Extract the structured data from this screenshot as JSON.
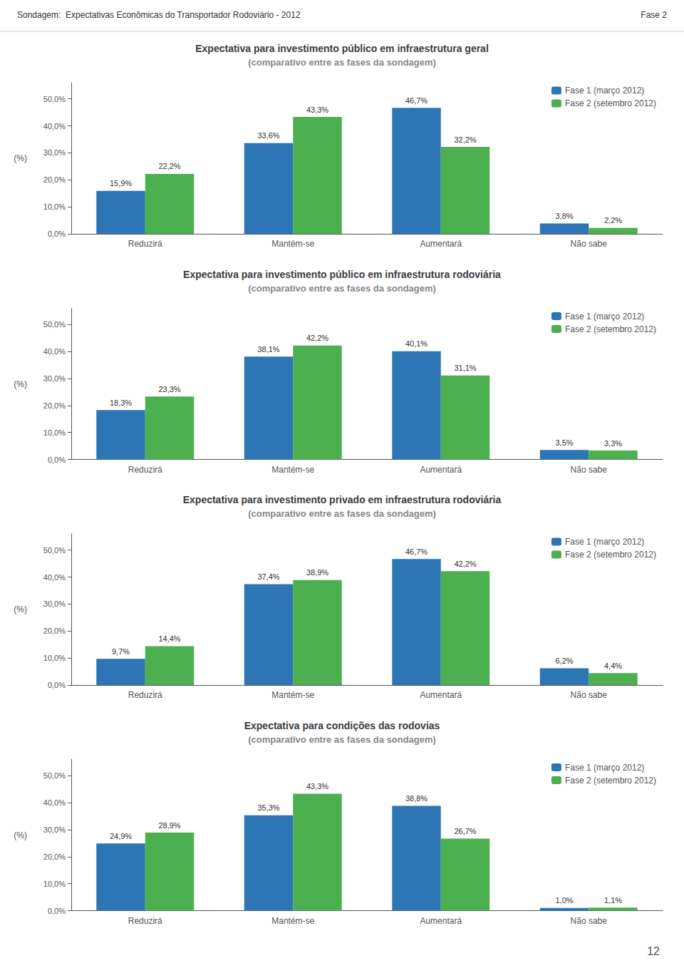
{
  "annotations": [
    "Sondagem:  Expectativas Econômicas do Transportador Rodoviário - 2012",
    "Fase 2",
    "12"
  ],
  "chart_data": [
    {
      "type": "bar",
      "title": "Expectativa para investimento público em infraestrutura geral",
      "subtitle": "(comparativo entre as fases da sondagem)",
      "y_label": "(%)",
      "categories": [
        "Reduzirá",
        "Mantém-se",
        "Aumentará",
        "Não sabe"
      ],
      "series": [
        {
          "name": "Fase 1 (março 2012)",
          "color": "#2E75B6",
          "values": [
            15.9,
            33.6,
            46.7,
            3.8
          ],
          "value_labels": [
            "15,9%",
            "33,6%",
            "46,7%",
            "3,8%"
          ]
        },
        {
          "name": "Fase 2 (setembro 2012)",
          "color": "#4CAF50",
          "values": [
            22.2,
            43.3,
            32.2,
            2.2
          ],
          "value_labels": [
            "22,2%",
            "43,3%",
            "32,2%",
            "2,2%"
          ]
        }
      ],
      "ylim": [
        0,
        56
      ],
      "yticks": [
        {
          "value": 0,
          "label": "0,0%"
        },
        {
          "value": 10,
          "label": "10,0%"
        },
        {
          "value": 20,
          "label": "20,0%"
        },
        {
          "value": 30,
          "label": "30,0%"
        },
        {
          "value": 40,
          "label": "40,0%"
        },
        {
          "value": 50,
          "label": "50,0%"
        }
      ],
      "grid": false,
      "legend": "upper right",
      "data_labels": true
    },
    {
      "type": "bar",
      "title": "Expectativa para investimento público em infraestrutura rodoviária",
      "subtitle": "(comparativo entre as fases da sondagem)",
      "y_label": "(%)",
      "categories": [
        "Reduzirá",
        "Mantém-se",
        "Aumentará",
        "Não sabe"
      ],
      "series": [
        {
          "name": "Fase 1 (março 2012)",
          "color": "#2E75B6",
          "values": [
            18.3,
            38.1,
            40.1,
            3.5
          ],
          "value_labels": [
            "18,3%",
            "38,1%",
            "40,1%",
            "3,5%"
          ]
        },
        {
          "name": "Fase 2 (setembro 2012)",
          "color": "#4CAF50",
          "values": [
            23.3,
            42.2,
            31.1,
            3.3
          ],
          "value_labels": [
            "23,3%",
            "42,2%",
            "31,1%",
            "3,3%"
          ]
        }
      ],
      "ylim": [
        0,
        56
      ],
      "yticks": [
        {
          "value": 0,
          "label": "0,0%"
        },
        {
          "value": 10,
          "label": "10,0%"
        },
        {
          "value": 20,
          "label": "20,0%"
        },
        {
          "value": 30,
          "label": "30,0%"
        },
        {
          "value": 40,
          "label": "40,0%"
        },
        {
          "value": 50,
          "label": "50,0%"
        }
      ],
      "grid": false,
      "legend": "upper right",
      "data_labels": true
    },
    {
      "type": "bar",
      "title": "Expectativa para investimento privado em infraestrutura rodoviária",
      "subtitle": "(comparativo entre as fases da sondagem)",
      "y_label": "(%)",
      "categories": [
        "Reduzirá",
        "Mantém-se",
        "Aumentará",
        "Não sabe"
      ],
      "series": [
        {
          "name": "Fase 1 (março 2012)",
          "color": "#2E75B6",
          "values": [
            9.7,
            37.4,
            46.7,
            6.2
          ],
          "value_labels": [
            "9,7%",
            "37,4%",
            "46,7%",
            "6,2%"
          ]
        },
        {
          "name": "Fase 2 (setembro 2012)",
          "color": "#4CAF50",
          "values": [
            14.4,
            38.9,
            42.2,
            4.4
          ],
          "value_labels": [
            "14,4%",
            "38,9%",
            "42,2%",
            "4,4%"
          ]
        }
      ],
      "ylim": [
        0,
        56
      ],
      "yticks": [
        {
          "value": 0,
          "label": "0,0%"
        },
        {
          "value": 10,
          "label": "10,0%"
        },
        {
          "value": 20,
          "label": "20,0%"
        },
        {
          "value": 30,
          "label": "30,0%"
        },
        {
          "value": 40,
          "label": "40,0%"
        },
        {
          "value": 50,
          "label": "50,0%"
        }
      ],
      "grid": false,
      "legend": "upper right",
      "data_labels": true
    },
    {
      "type": "bar",
      "title": "Expectativa para condições das rodovias",
      "subtitle": "(comparativo entre as fases da sondagem)",
      "y_label": "(%)",
      "categories": [
        "Reduzirá",
        "Mantém-se",
        "Aumentará",
        "Não sabe"
      ],
      "series": [
        {
          "name": "Fase 1 (março 2012)",
          "color": "#2E75B6",
          "values": [
            24.9,
            35.3,
            38.8,
            1.0
          ],
          "value_labels": [
            "24,9%",
            "35,3%",
            "38,8%",
            "1,0%"
          ]
        },
        {
          "name": "Fase 2 (setembro 2012)",
          "color": "#4CAF50",
          "values": [
            28.9,
            43.3,
            26.7,
            1.1
          ],
          "value_labels": [
            "28,9%",
            "43,3%",
            "26,7%",
            "1,1%"
          ]
        }
      ],
      "ylim": [
        0,
        56
      ],
      "yticks": [
        {
          "value": 0,
          "label": "0,0%"
        },
        {
          "value": 10,
          "label": "10,0%"
        },
        {
          "value": 20,
          "label": "20,0%"
        },
        {
          "value": 30,
          "label": "30,0%"
        },
        {
          "value": 40,
          "label": "40,0%"
        },
        {
          "value": 50,
          "label": "50,0%"
        }
      ],
      "grid": false,
      "legend": "upper right",
      "data_labels": true
    }
  ]
}
